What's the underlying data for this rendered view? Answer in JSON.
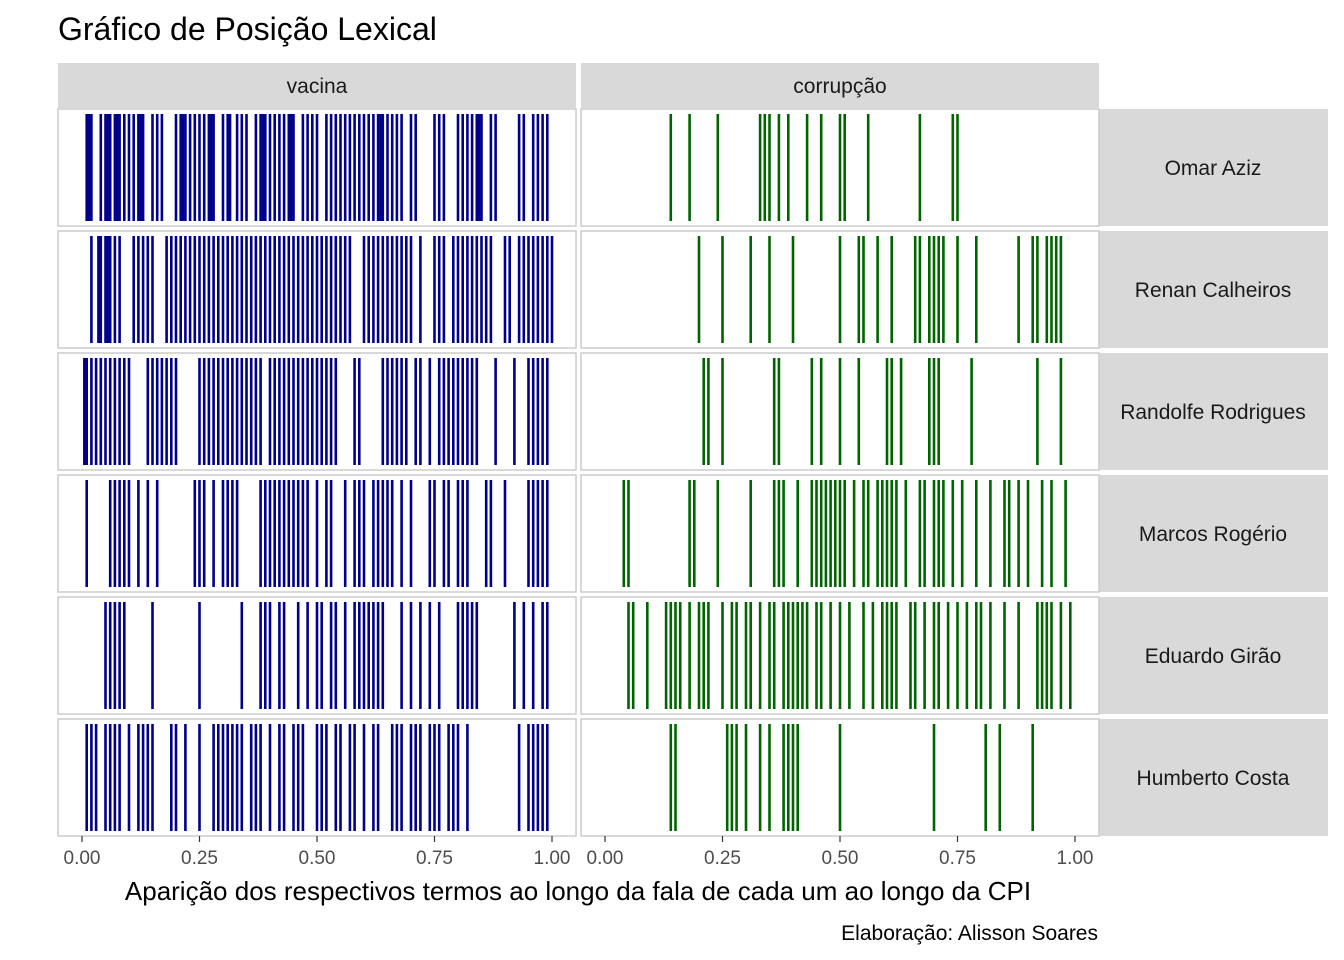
{
  "chart_data": {
    "type": "lexical-dispersion",
    "title": "Gráfico de Posição Lexical",
    "xlabel": "Aparição dos respectivos termos ao longo da fala de cada um ao longo da CPI",
    "caption": "Elaboração: Alisson Soares",
    "xlim": [
      0,
      1
    ],
    "x_ticks": [
      "0.00",
      "0.25",
      "0.50",
      "0.75",
      "1.00"
    ],
    "x_tick_values": [
      0,
      0.25,
      0.5,
      0.75,
      1.0
    ],
    "grid": false,
    "legend": "none",
    "terms": [
      {
        "name": "vacina",
        "color": "#00008B"
      },
      {
        "name": "corrupção",
        "color": "#006400"
      }
    ],
    "speakers": [
      "Omar Aziz",
      "Renan Calheiros",
      "Randolfe Rodrigues",
      "Marcos Rogério",
      "Eduardo Girão",
      "Humberto Costa"
    ],
    "positions": {
      "vacina": [
        [
          0.01,
          0.015,
          0.02,
          0.04,
          0.05,
          0.055,
          0.06,
          0.07,
          0.075,
          0.08,
          0.09,
          0.1,
          0.11,
          0.12,
          0.125,
          0.13,
          0.15,
          0.16,
          0.17,
          0.2,
          0.21,
          0.215,
          0.22,
          0.23,
          0.24,
          0.25,
          0.26,
          0.27,
          0.275,
          0.28,
          0.3,
          0.31,
          0.315,
          0.33,
          0.34,
          0.35,
          0.37,
          0.38,
          0.385,
          0.39,
          0.4,
          0.41,
          0.42,
          0.43,
          0.44,
          0.445,
          0.45,
          0.47,
          0.48,
          0.49,
          0.5,
          0.52,
          0.53,
          0.54,
          0.55,
          0.56,
          0.57,
          0.58,
          0.59,
          0.6,
          0.61,
          0.62,
          0.63,
          0.635,
          0.64,
          0.65,
          0.66,
          0.67,
          0.68,
          0.7,
          0.71,
          0.75,
          0.76,
          0.77,
          0.8,
          0.81,
          0.82,
          0.83,
          0.84,
          0.845,
          0.85,
          0.87,
          0.88,
          0.93,
          0.94,
          0.96,
          0.97,
          0.98,
          0.99
        ],
        [
          0.02,
          0.035,
          0.04,
          0.05,
          0.055,
          0.06,
          0.07,
          0.08,
          0.11,
          0.12,
          0.13,
          0.14,
          0.15,
          0.18,
          0.19,
          0.2,
          0.21,
          0.22,
          0.23,
          0.24,
          0.25,
          0.26,
          0.27,
          0.28,
          0.29,
          0.3,
          0.31,
          0.32,
          0.33,
          0.34,
          0.35,
          0.36,
          0.37,
          0.38,
          0.39,
          0.4,
          0.41,
          0.42,
          0.43,
          0.44,
          0.45,
          0.46,
          0.47,
          0.48,
          0.49,
          0.5,
          0.51,
          0.52,
          0.53,
          0.54,
          0.55,
          0.56,
          0.57,
          0.6,
          0.61,
          0.62,
          0.63,
          0.64,
          0.65,
          0.66,
          0.67,
          0.68,
          0.69,
          0.7,
          0.72,
          0.75,
          0.76,
          0.77,
          0.79,
          0.8,
          0.81,
          0.82,
          0.83,
          0.84,
          0.85,
          0.86,
          0.87,
          0.9,
          0.91,
          0.93,
          0.94,
          0.95,
          0.96,
          0.97,
          0.98,
          0.99,
          1.0
        ],
        [
          0.005,
          0.01,
          0.02,
          0.03,
          0.04,
          0.05,
          0.06,
          0.07,
          0.08,
          0.09,
          0.1,
          0.14,
          0.15,
          0.16,
          0.17,
          0.18,
          0.19,
          0.2,
          0.25,
          0.26,
          0.27,
          0.28,
          0.29,
          0.3,
          0.31,
          0.32,
          0.33,
          0.34,
          0.35,
          0.36,
          0.37,
          0.38,
          0.4,
          0.41,
          0.42,
          0.43,
          0.44,
          0.45,
          0.46,
          0.47,
          0.48,
          0.49,
          0.5,
          0.51,
          0.52,
          0.53,
          0.54,
          0.58,
          0.59,
          0.64,
          0.65,
          0.66,
          0.67,
          0.68,
          0.69,
          0.71,
          0.72,
          0.74,
          0.76,
          0.77,
          0.78,
          0.79,
          0.8,
          0.81,
          0.82,
          0.83,
          0.84,
          0.88,
          0.92,
          0.95,
          0.96,
          0.97,
          0.98,
          0.99
        ],
        [
          0.01,
          0.06,
          0.07,
          0.08,
          0.09,
          0.1,
          0.12,
          0.14,
          0.16,
          0.24,
          0.25,
          0.26,
          0.28,
          0.3,
          0.31,
          0.32,
          0.33,
          0.38,
          0.39,
          0.4,
          0.41,
          0.42,
          0.43,
          0.44,
          0.45,
          0.46,
          0.47,
          0.48,
          0.5,
          0.52,
          0.53,
          0.56,
          0.58,
          0.59,
          0.6,
          0.62,
          0.63,
          0.64,
          0.65,
          0.66,
          0.68,
          0.7,
          0.74,
          0.75,
          0.77,
          0.78,
          0.8,
          0.81,
          0.82,
          0.86,
          0.87,
          0.9,
          0.95,
          0.96,
          0.97,
          0.98,
          0.99
        ],
        [
          0.05,
          0.06,
          0.07,
          0.08,
          0.09,
          0.15,
          0.25,
          0.34,
          0.38,
          0.39,
          0.4,
          0.42,
          0.43,
          0.46,
          0.48,
          0.5,
          0.51,
          0.53,
          0.54,
          0.56,
          0.58,
          0.59,
          0.6,
          0.61,
          0.62,
          0.63,
          0.64,
          0.68,
          0.7,
          0.72,
          0.74,
          0.76,
          0.8,
          0.81,
          0.82,
          0.83,
          0.84,
          0.92,
          0.94,
          0.96,
          0.98,
          0.99
        ],
        [
          0.01,
          0.02,
          0.03,
          0.05,
          0.06,
          0.07,
          0.08,
          0.1,
          0.12,
          0.13,
          0.14,
          0.15,
          0.19,
          0.2,
          0.22,
          0.25,
          0.28,
          0.29,
          0.3,
          0.31,
          0.32,
          0.33,
          0.34,
          0.36,
          0.37,
          0.38,
          0.4,
          0.42,
          0.43,
          0.45,
          0.46,
          0.47,
          0.5,
          0.51,
          0.52,
          0.54,
          0.55,
          0.57,
          0.58,
          0.6,
          0.62,
          0.63,
          0.66,
          0.67,
          0.68,
          0.7,
          0.71,
          0.72,
          0.74,
          0.75,
          0.76,
          0.78,
          0.79,
          0.8,
          0.82,
          0.93,
          0.95,
          0.96,
          0.97,
          0.98,
          0.99
        ]
      ],
      "corrupção": [
        [
          0.14,
          0.18,
          0.24,
          0.33,
          0.34,
          0.35,
          0.37,
          0.39,
          0.43,
          0.46,
          0.5,
          0.51,
          0.56,
          0.67,
          0.74,
          0.75
        ],
        [
          0.2,
          0.25,
          0.31,
          0.35,
          0.4,
          0.5,
          0.54,
          0.55,
          0.58,
          0.61,
          0.66,
          0.67,
          0.69,
          0.7,
          0.71,
          0.72,
          0.75,
          0.79,
          0.88,
          0.91,
          0.92,
          0.94,
          0.95,
          0.96,
          0.97
        ],
        [
          0.21,
          0.22,
          0.25,
          0.36,
          0.37,
          0.44,
          0.46,
          0.5,
          0.54,
          0.6,
          0.61,
          0.63,
          0.69,
          0.7,
          0.71,
          0.78,
          0.92,
          0.97
        ],
        [
          0.04,
          0.05,
          0.18,
          0.19,
          0.24,
          0.31,
          0.36,
          0.37,
          0.38,
          0.41,
          0.44,
          0.45,
          0.46,
          0.47,
          0.48,
          0.49,
          0.5,
          0.51,
          0.53,
          0.55,
          0.56,
          0.58,
          0.59,
          0.6,
          0.61,
          0.62,
          0.64,
          0.67,
          0.68,
          0.7,
          0.71,
          0.72,
          0.74,
          0.76,
          0.79,
          0.82,
          0.85,
          0.86,
          0.88,
          0.9,
          0.93,
          0.95,
          0.98
        ],
        [
          0.05,
          0.06,
          0.09,
          0.13,
          0.14,
          0.15,
          0.16,
          0.18,
          0.2,
          0.21,
          0.22,
          0.25,
          0.27,
          0.28,
          0.3,
          0.31,
          0.33,
          0.35,
          0.36,
          0.38,
          0.39,
          0.4,
          0.41,
          0.42,
          0.43,
          0.45,
          0.46,
          0.48,
          0.5,
          0.52,
          0.55,
          0.57,
          0.59,
          0.6,
          0.61,
          0.62,
          0.65,
          0.66,
          0.68,
          0.7,
          0.71,
          0.73,
          0.75,
          0.77,
          0.79,
          0.8,
          0.82,
          0.85,
          0.88,
          0.92,
          0.93,
          0.94,
          0.95,
          0.97,
          0.99
        ],
        [
          0.14,
          0.15,
          0.26,
          0.27,
          0.28,
          0.3,
          0.33,
          0.35,
          0.38,
          0.39,
          0.4,
          0.41,
          0.5,
          0.7,
          0.81,
          0.84,
          0.91
        ]
      ]
    }
  }
}
